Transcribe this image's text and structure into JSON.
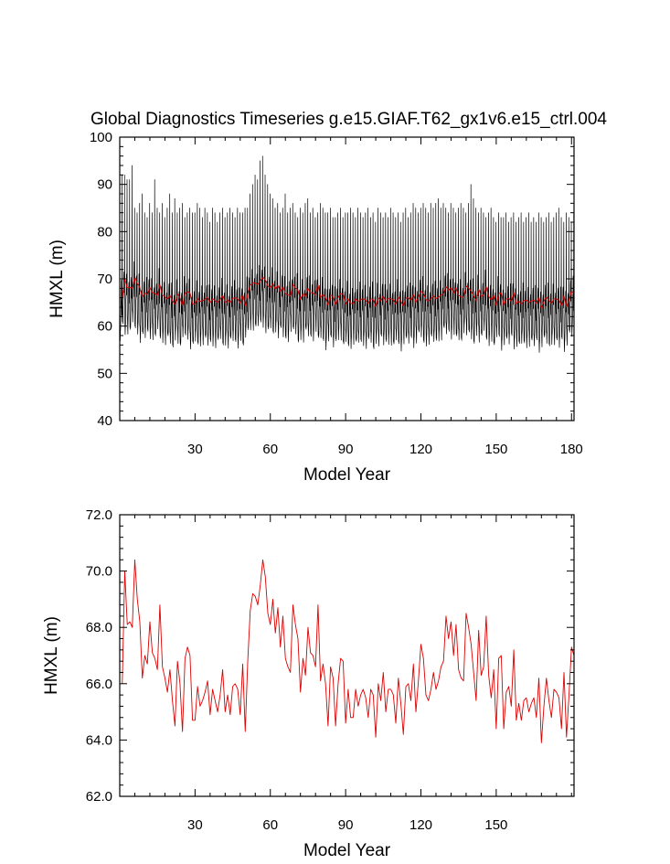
{
  "chart_data": [
    {
      "type": "line",
      "title": "Global Diagnostics Timeseries g.e15.GIAF.T62_gx1v6.e15_ctrl.004",
      "xlabel": "Model Year",
      "ylabel": "HMXL (m)",
      "xlim": [
        0,
        181
      ],
      "ylim": [
        40,
        100
      ],
      "xticks": [
        30,
        60,
        90,
        120,
        150,
        180
      ],
      "yticks": [
        40,
        50,
        60,
        70,
        80,
        90,
        100
      ],
      "series": [
        {
          "color": "#000000",
          "resolution": "monthly",
          "annual_pattern": [
            60.5,
            58.5,
            57.5,
            57.5,
            59.5,
            62.5,
            64.5,
            66.5,
            68.5,
            65.5,
            63.5,
            84.0
          ],
          "yearly_peak": [
            92,
            92,
            91,
            91,
            94,
            85,
            84,
            86,
            88,
            84,
            83,
            86,
            84,
            91,
            85,
            84,
            86,
            83,
            85,
            88,
            84,
            87,
            84,
            85,
            86,
            83,
            84,
            85,
            84,
            84,
            86,
            85,
            83,
            85,
            84,
            82,
            85,
            84,
            82,
            84,
            85,
            83,
            84,
            85,
            84,
            83,
            85,
            84,
            84,
            85,
            85,
            88,
            90,
            92,
            91,
            95,
            96,
            92,
            90,
            88,
            87,
            85,
            86,
            84,
            85,
            88,
            84,
            85,
            86,
            84,
            83,
            85,
            84,
            86,
            87,
            84,
            85,
            83,
            84,
            86,
            85,
            84,
            84,
            85,
            83,
            83,
            84,
            85,
            83,
            84,
            84,
            85,
            84,
            83,
            85,
            84,
            83,
            84,
            85,
            83,
            84,
            82,
            85,
            84,
            83,
            84,
            83,
            85,
            84,
            83,
            84,
            82,
            84,
            85,
            83,
            84,
            86,
            85,
            84,
            85,
            86,
            85,
            84,
            86,
            85,
            86,
            87,
            85,
            86,
            85,
            84,
            86,
            85,
            84,
            85,
            86,
            85,
            84,
            86,
            90,
            87,
            85,
            84,
            85,
            84,
            83,
            84,
            85,
            83,
            82,
            84,
            83,
            83,
            84,
            82,
            83,
            84,
            82,
            83,
            84,
            82,
            83,
            84,
            82,
            83,
            82,
            84,
            83,
            82,
            83,
            84,
            82,
            83,
            84,
            85,
            83,
            82,
            84,
            83,
            82,
            84
          ]
        },
        {
          "color": "#dd0000",
          "resolution": "annual",
          "note": "annual mean, same as lower panel"
        }
      ]
    },
    {
      "type": "line",
      "title": "",
      "xlabel": "Model Year",
      "ylabel": "HMXL (m)",
      "xlim": [
        0,
        181
      ],
      "ylim": [
        62.0,
        72.0
      ],
      "xticks": [
        30,
        60,
        90,
        120,
        150
      ],
      "yticks": [
        62.0,
        64.0,
        66.0,
        68.0,
        70.0,
        72.0
      ],
      "series": [
        {
          "color": "#dd0000",
          "x_start": 1,
          "values": [
            66.0,
            70.0,
            68.1,
            68.2,
            68.0,
            70.4,
            69.0,
            68.2,
            66.2,
            67.0,
            66.7,
            68.2,
            67.1,
            66.9,
            66.5,
            68.8,
            66.6,
            66.2,
            65.7,
            66.5,
            65.4,
            64.5,
            66.8,
            66.0,
            64.3,
            66.9,
            67.3,
            67.0,
            64.7,
            64.7,
            65.9,
            65.2,
            65.4,
            65.7,
            66.1,
            64.9,
            65.8,
            65.4,
            65.0,
            65.6,
            66.5,
            65.0,
            65.6,
            64.9,
            65.9,
            66.0,
            65.8,
            64.9,
            66.7,
            64.3,
            66.8,
            68.6,
            69.2,
            69.1,
            68.8,
            69.5,
            70.4,
            69.8,
            68.5,
            68.1,
            69.0,
            67.8,
            68.7,
            67.3,
            68.4,
            66.9,
            66.6,
            66.4,
            68.8,
            68.1,
            67.6,
            65.7,
            66.9,
            66.3,
            68.0,
            67.1,
            67.0,
            66.6,
            68.8,
            66.1,
            66.7,
            66.0,
            64.5,
            66.6,
            66.2,
            64.5,
            66.0,
            66.9,
            66.8,
            64.6,
            65.8,
            64.8,
            64.8,
            65.8,
            65.2,
            65.6,
            65.8,
            65.5,
            64.8,
            65.8,
            65.6,
            64.1,
            66.0,
            65.4,
            66.4,
            65.0,
            65.8,
            65.8,
            65.6,
            64.6,
            66.2,
            65.3,
            64.2,
            65.9,
            66.0,
            65.4,
            66.7,
            65.0,
            66.1,
            67.4,
            66.9,
            65.6,
            65.4,
            65.8,
            66.4,
            65.8,
            66.1,
            66.6,
            66.8,
            68.4,
            67.6,
            68.2,
            67.0,
            68.1,
            66.5,
            66.2,
            66.1,
            68.5,
            68.0,
            67.4,
            66.4,
            65.4,
            67.9,
            66.3,
            66.6,
            68.4,
            66.3,
            65.5,
            66.5,
            64.4,
            66.9,
            67.0,
            64.4,
            65.7,
            65.9,
            65.2,
            67.2,
            64.7,
            65.3,
            64.7,
            65.4,
            65.5,
            65.0,
            65.3,
            65.5,
            64.8,
            66.2,
            63.9,
            65.2,
            66.2,
            65.4,
            64.8,
            65.8,
            65.7,
            65.5,
            64.4,
            66.4,
            64.1,
            65.6,
            67.3,
            67.0,
            65.4
          ]
        }
      ]
    }
  ]
}
